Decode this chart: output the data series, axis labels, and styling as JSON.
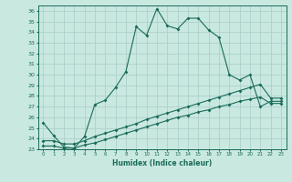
{
  "xlabel": "Humidex (Indice chaleur)",
  "xlim": [
    -0.5,
    23.5
  ],
  "ylim": [
    23,
    36.5
  ],
  "yticks": [
    23,
    24,
    25,
    26,
    27,
    28,
    29,
    30,
    31,
    32,
    33,
    34,
    35,
    36
  ],
  "xticks": [
    0,
    1,
    2,
    3,
    4,
    5,
    6,
    7,
    8,
    9,
    10,
    11,
    12,
    13,
    14,
    15,
    16,
    17,
    18,
    19,
    20,
    21,
    22,
    23
  ],
  "bg_color": "#c8e8e0",
  "grid_color": "#b0d0cc",
  "line_color": "#1a6b5a",
  "main_x": [
    0,
    1,
    2,
    3,
    4,
    5,
    6,
    7,
    8,
    9,
    10,
    11,
    12,
    13,
    14,
    15,
    16,
    17,
    18,
    19,
    20,
    21,
    22,
    23
  ],
  "main_y": [
    25.5,
    24.3,
    23.2,
    23.1,
    24.2,
    27.2,
    27.6,
    28.8,
    30.3,
    34.5,
    33.7,
    36.2,
    34.6,
    34.3,
    35.3,
    35.3,
    34.2,
    33.5,
    30.0,
    29.5,
    30.0,
    27.0,
    27.5,
    27.5
  ],
  "line2_x": [
    0,
    1,
    2,
    3,
    4,
    5,
    6,
    7,
    8,
    9,
    10,
    11,
    12,
    13,
    14,
    15,
    16,
    17,
    18,
    19,
    20,
    21,
    22,
    23
  ],
  "line2_y": [
    23.8,
    23.8,
    23.5,
    23.5,
    23.8,
    24.2,
    24.5,
    24.8,
    25.1,
    25.4,
    25.8,
    26.1,
    26.4,
    26.7,
    27.0,
    27.3,
    27.6,
    27.9,
    28.2,
    28.5,
    28.8,
    29.1,
    27.8,
    27.8
  ],
  "line3_x": [
    0,
    1,
    2,
    3,
    4,
    5,
    6,
    7,
    8,
    9,
    10,
    11,
    12,
    13,
    14,
    15,
    16,
    17,
    18,
    19,
    20,
    21,
    22,
    23
  ],
  "line3_y": [
    23.3,
    23.3,
    23.1,
    23.1,
    23.4,
    23.6,
    23.9,
    24.2,
    24.5,
    24.8,
    25.1,
    25.4,
    25.7,
    26.0,
    26.2,
    26.5,
    26.7,
    27.0,
    27.2,
    27.5,
    27.7,
    27.9,
    27.3,
    27.3
  ]
}
